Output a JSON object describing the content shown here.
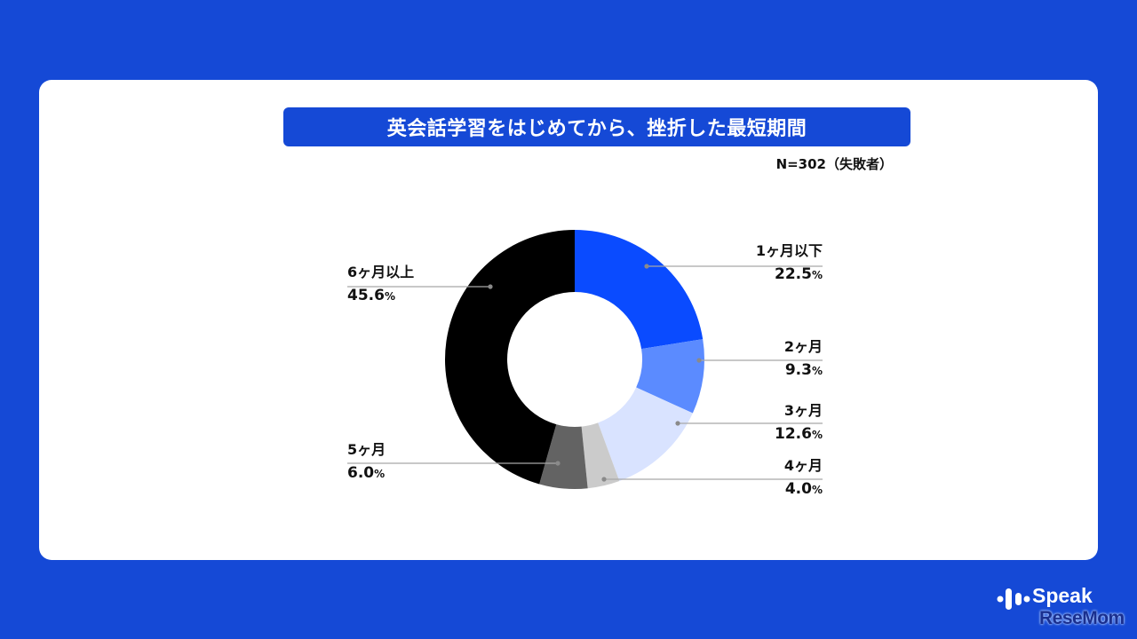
{
  "header": {
    "title": "英会話学習をはじめてから、挫折した最短期間",
    "sample_note": "N=302（失敗者）"
  },
  "colors": {
    "background": "#1549d6",
    "title_bar": "#1549d6",
    "card": "#ffffff"
  },
  "chart_data": {
    "type": "pie",
    "variant": "donut",
    "title": "英会話学習をはじめてから、挫折した最短期間",
    "subtitle": "N=302（失敗者）",
    "categories": [
      "1ヶ月以下",
      "2ヶ月",
      "3ヶ月",
      "4ヶ月",
      "5ヶ月",
      "6ヶ月以上"
    ],
    "values": [
      22.5,
      9.3,
      12.6,
      4.0,
      6.0,
      45.6
    ],
    "unit": "%",
    "colors": [
      "#0a4bff",
      "#5b8bff",
      "#d9e3ff",
      "#cbcbcb",
      "#636363",
      "#000000"
    ],
    "start_angle": "12 o'clock",
    "direction": "clockwise",
    "legend_position": "leader-line labels"
  },
  "labels": [
    {
      "category": "1ヶ月以下",
      "value": "22.5",
      "pct": "%"
    },
    {
      "category": "2ヶ月",
      "value": "9.3",
      "pct": "%"
    },
    {
      "category": "3ヶ月",
      "value": "12.6",
      "pct": "%"
    },
    {
      "category": "4ヶ月",
      "value": "4.0",
      "pct": "%"
    },
    {
      "category": "5ヶ月",
      "value": "6.0",
      "pct": "%"
    },
    {
      "category": "6ヶ月以上",
      "value": "45.6",
      "pct": "%"
    }
  ],
  "brand": {
    "speak": "Speak",
    "resemom": "ReseMom"
  }
}
